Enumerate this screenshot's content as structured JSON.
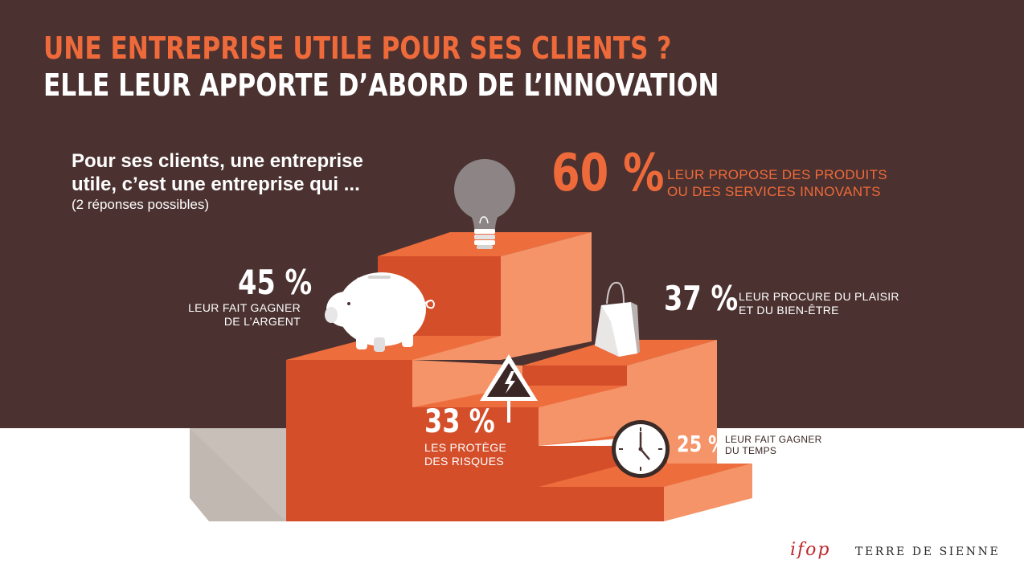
{
  "header": {
    "title_line1": "UNE ENTREPRISE UTILE POUR SES CLIENTS ?",
    "title_line2": "ELLE LEUR APPORTE D’ABORD DE L’INNOVATION"
  },
  "intro": {
    "line1": "Pour ses clients, une entreprise",
    "line2": "utile, c’est une entreprise qui ...",
    "note": "(2 réponses possibles)"
  },
  "stats": [
    {
      "value": "60 %",
      "line1": "LEUR PROPOSE DES PRODUITS",
      "line2": "OU DES SERVICES INNOVANTS",
      "icon": "lightbulb-icon"
    },
    {
      "value": "45 %",
      "line1": "LEUR FAIT GAGNER",
      "line2": "DE L’ARGENT",
      "icon": "piggy-bank-icon"
    },
    {
      "value": "37 %",
      "line1": "LEUR PROCURE DU PLAISIR",
      "line2": "ET DU BIEN-ÊTRE",
      "icon": "shopping-bag-icon"
    },
    {
      "value": "33 %",
      "line1": "LES PROTÈGE",
      "line2": "DES RISQUES",
      "icon": "warning-sign-icon"
    },
    {
      "value": "25 %",
      "line1": "LEUR FAIT GAGNER",
      "line2": "DU TEMPS",
      "icon": "clock-icon"
    }
  ],
  "logos": {
    "ifop": "ifop",
    "partner": "TERRE DE SIENNE"
  },
  "colors": {
    "background": "#4b3230",
    "accent": "#ef6a3a",
    "step_front": "#d44e2a",
    "step_side": "#f59468",
    "step_top": "#ee6d3d"
  }
}
